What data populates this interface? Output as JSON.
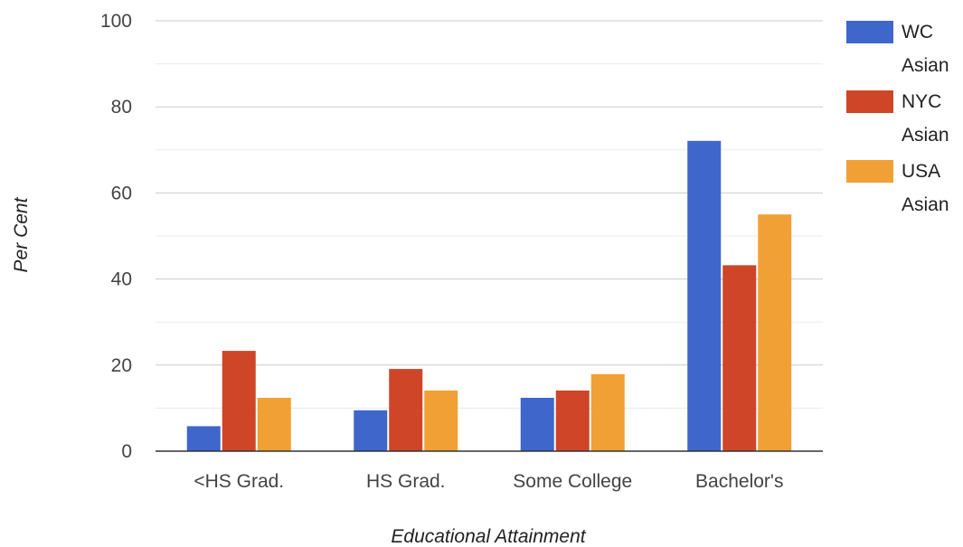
{
  "chart_data": {
    "type": "bar",
    "categories": [
      "<HS Grad.",
      "HS Grad.",
      "Some College",
      "Bachelor's"
    ],
    "series": [
      {
        "name": "WC Asian",
        "label_lines": [
          "WC",
          "Asian"
        ],
        "color": "#3f66cb",
        "values": [
          5.8,
          9.5,
          12.4,
          72.1
        ]
      },
      {
        "name": "NYC Asian",
        "label_lines": [
          "NYC",
          "Asian"
        ],
        "color": "#cf4528",
        "values": [
          23.3,
          19.1,
          14.1,
          43.2
        ]
      },
      {
        "name": "USA Asian",
        "label_lines": [
          "USA",
          "Asian"
        ],
        "color": "#f1a035",
        "values": [
          12.4,
          14.1,
          17.9,
          55.0
        ]
      }
    ],
    "xlabel": "Educational Attainment",
    "ylabel": "Per Cent",
    "ylim": [
      0,
      100
    ],
    "yticks": [
      0,
      20,
      40,
      60,
      80,
      100
    ],
    "grid": true,
    "legend_position": "right"
  }
}
